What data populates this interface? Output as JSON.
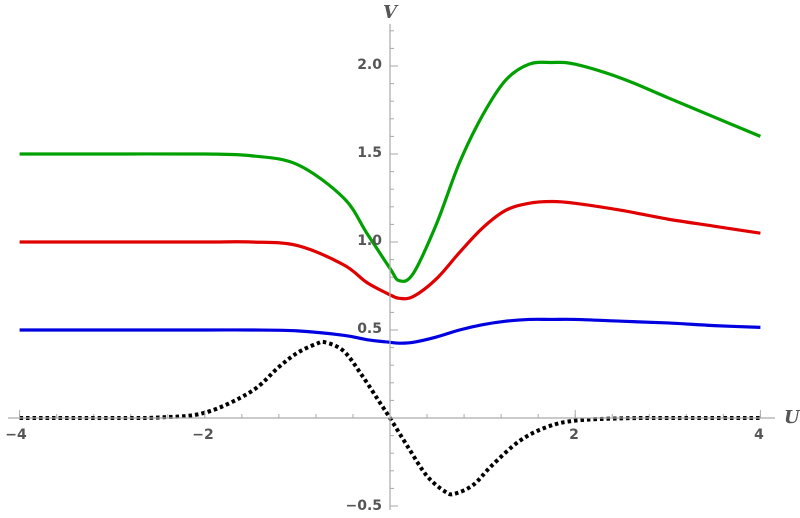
{
  "chart_data": {
    "type": "line",
    "xlabel": "U",
    "ylabel": "V",
    "xlim": [
      -4,
      4
    ],
    "ylim": [
      -0.5,
      2.2
    ],
    "x_major_ticks": [
      -4,
      -2,
      0,
      2,
      4
    ],
    "x_tick_labels": [
      "−4",
      "−2",
      "",
      "2",
      "4"
    ],
    "y_major_ticks": [
      -0.5,
      0.5,
      1.0,
      1.5,
      2.0
    ],
    "y_tick_labels": [
      "−0.5",
      "0.5",
      "1.0",
      "1.5",
      "2.0"
    ],
    "x_minor_step": 0.4,
    "y_minor_step": 0.1,
    "grid": false,
    "series": [
      {
        "color": "#00a000",
        "style": "solid",
        "x": [
          -4,
          -3,
          -2,
          -1.5,
          -1,
          -0.5,
          -0.25,
          0,
          0.1,
          0.25,
          0.5,
          0.75,
          1,
          1.25,
          1.5,
          1.75,
          2,
          2.5,
          3,
          3.5,
          4
        ],
        "y": [
          1.5,
          1.5,
          1.5,
          1.49,
          1.44,
          1.25,
          1.05,
          0.85,
          0.78,
          0.82,
          1.1,
          1.45,
          1.72,
          1.92,
          2.01,
          2.02,
          2.01,
          1.93,
          1.82,
          1.71,
          1.6
        ]
      },
      {
        "color": "#e00000",
        "style": "solid",
        "x": [
          -4,
          -3,
          -2,
          -1.5,
          -1,
          -0.5,
          -0.25,
          0,
          0.1,
          0.25,
          0.5,
          0.75,
          1,
          1.25,
          1.5,
          1.75,
          2,
          2.5,
          3,
          3.5,
          4
        ],
        "y": [
          1.0,
          1.0,
          1.0,
          1.0,
          0.98,
          0.87,
          0.77,
          0.7,
          0.68,
          0.69,
          0.79,
          0.94,
          1.08,
          1.18,
          1.22,
          1.23,
          1.22,
          1.18,
          1.13,
          1.09,
          1.05
        ]
      },
      {
        "color": "#0000e0",
        "style": "solid",
        "x": [
          -4,
          -3,
          -2,
          -1.5,
          -1,
          -0.5,
          -0.25,
          0,
          0.1,
          0.25,
          0.5,
          0.75,
          1,
          1.25,
          1.5,
          1.75,
          2,
          2.5,
          3,
          3.5,
          4
        ],
        "y": [
          0.5,
          0.5,
          0.5,
          0.5,
          0.495,
          0.47,
          0.445,
          0.43,
          0.425,
          0.43,
          0.46,
          0.5,
          0.53,
          0.55,
          0.56,
          0.56,
          0.56,
          0.55,
          0.54,
          0.525,
          0.515
        ]
      },
      {
        "color": "#000000",
        "style": "dotted",
        "x": [
          -4,
          -3,
          -2.5,
          -2,
          -1.5,
          -1.2,
          -1,
          -0.8,
          -0.7,
          -0.5,
          -0.3,
          -0.1,
          0,
          0.2,
          0.4,
          0.6,
          0.7,
          0.9,
          1.1,
          1.4,
          1.7,
          2,
          2.5,
          3,
          4
        ],
        "y": [
          0,
          0,
          0.003,
          0.03,
          0.15,
          0.29,
          0.37,
          0.42,
          0.43,
          0.38,
          0.24,
          0.08,
          0,
          -0.17,
          -0.33,
          -0.42,
          -0.43,
          -0.38,
          -0.27,
          -0.13,
          -0.05,
          -0.015,
          -0.002,
          0,
          0
        ]
      }
    ]
  }
}
